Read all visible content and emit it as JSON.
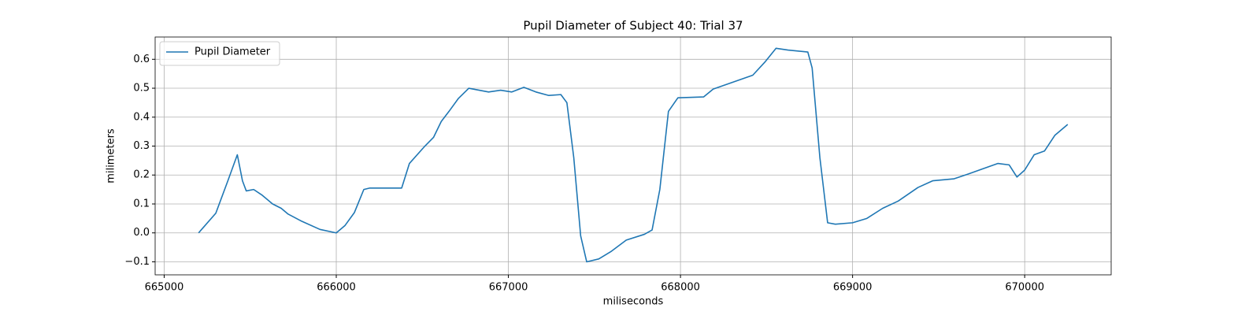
{
  "chart_data": {
    "type": "line",
    "title": "Pupil Diameter of Subject 40: Trial 37",
    "xlabel": "miliseconds",
    "ylabel": "milimeters",
    "x": [
      665200,
      665300,
      665370,
      665425,
      665455,
      665477,
      665520,
      665570,
      665630,
      665680,
      665720,
      665800,
      665905,
      666000,
      666050,
      666105,
      666160,
      666195,
      666380,
      666425,
      666515,
      666565,
      666610,
      666655,
      666710,
      666770,
      666885,
      666955,
      667020,
      667090,
      667160,
      667235,
      667305,
      667340,
      667380,
      667420,
      667455,
      667525,
      667595,
      667685,
      667790,
      667835,
      667880,
      667930,
      667985,
      668135,
      668190,
      668420,
      668490,
      668555,
      668625,
      668740,
      668765,
      668810,
      668855,
      668900,
      669000,
      669083,
      669175,
      669265,
      669380,
      669465,
      669590,
      669670,
      669750,
      669845,
      669910,
      669955,
      670000,
      670055,
      670115,
      670175,
      670250
    ],
    "series": [
      {
        "name": "Pupil Diameter",
        "color": "#1f77b4",
        "values": [
          0.0,
          0.068,
          0.18,
          0.27,
          0.18,
          0.145,
          0.15,
          0.13,
          0.1,
          0.085,
          0.065,
          0.04,
          0.012,
          0.0,
          0.025,
          0.07,
          0.15,
          0.155,
          0.155,
          0.24,
          0.3,
          0.33,
          0.385,
          0.42,
          0.465,
          0.5,
          0.487,
          0.493,
          0.487,
          0.503,
          0.487,
          0.475,
          0.478,
          0.45,
          0.26,
          -0.01,
          -0.1,
          -0.09,
          -0.065,
          -0.025,
          -0.005,
          0.01,
          0.15,
          0.42,
          0.467,
          0.47,
          0.497,
          0.545,
          0.59,
          0.638,
          0.632,
          0.625,
          0.57,
          0.26,
          0.035,
          0.03,
          0.035,
          0.05,
          0.085,
          0.11,
          0.157,
          0.18,
          0.187,
          0.203,
          0.22,
          0.24,
          0.235,
          0.193,
          0.217,
          0.27,
          0.283,
          0.337,
          0.375
        ]
      }
    ],
    "xlim": [
      664947.5,
      670502.5
    ],
    "ylim": [
      -0.145,
      0.677
    ],
    "xticks": [
      665000,
      666000,
      667000,
      668000,
      669000,
      670000
    ],
    "yticks": [
      {
        "value": -0.1,
        "label": "−0.1"
      },
      {
        "value": 0,
        "label": "0.0"
      },
      0.1,
      0.2,
      0.3,
      0.4,
      0.5,
      0.6
    ],
    "grid": true,
    "legend": "upper left"
  }
}
